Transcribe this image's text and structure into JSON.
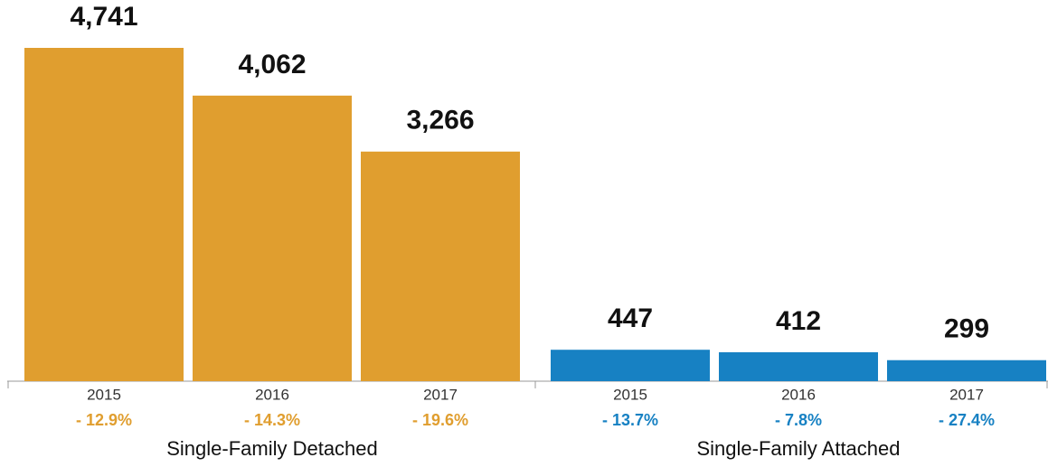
{
  "chart_data": {
    "type": "bar",
    "groups": [
      {
        "name": "Single-Family Detached",
        "color": "#e09e2f",
        "categories": [
          "2015",
          "2016",
          "2017"
        ],
        "values": [
          4741,
          4062,
          3266
        ],
        "value_labels": [
          "4,741",
          "4,062",
          "3,266"
        ],
        "change_labels": [
          "- 12.9%",
          "- 14.3%",
          "- 19.6%"
        ]
      },
      {
        "name": "Single-Family Attached",
        "color": "#1781c3",
        "categories": [
          "2015",
          "2016",
          "2017"
        ],
        "values": [
          447,
          412,
          299
        ],
        "change_labels": [
          "- 13.7%",
          "- 7.8%",
          "- 27.4%"
        ]
      }
    ]
  }
}
